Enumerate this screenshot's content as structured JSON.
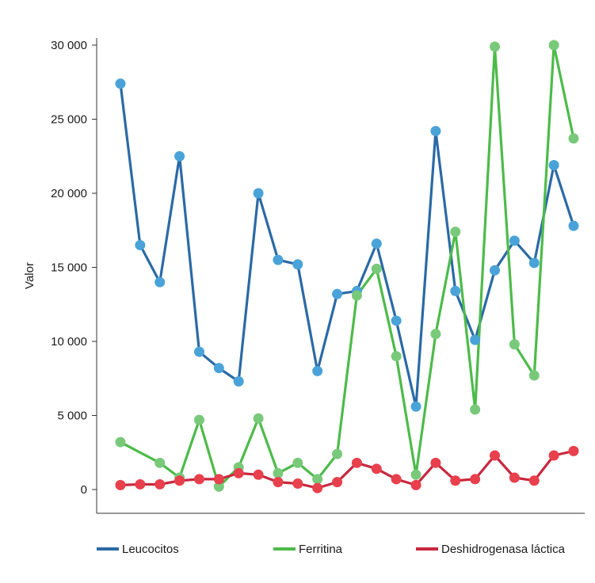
{
  "chart_data": {
    "type": "line",
    "title": "",
    "xlabel": "",
    "ylabel": "Valor",
    "ylim": [
      0,
      30000
    ],
    "yticks": [
      {
        "value": 0,
        "label": "0"
      },
      {
        "value": 5000,
        "label": "5 000"
      },
      {
        "value": 10000,
        "label": "10 000"
      },
      {
        "value": 15000,
        "label": "15 000"
      },
      {
        "value": 20000,
        "label": "20 000"
      },
      {
        "value": 25000,
        "label": "25 000"
      },
      {
        "value": 30000,
        "label": "30 000"
      }
    ],
    "grid": false,
    "legend_position": "bottom",
    "series": [
      {
        "name": "Leucocitos",
        "line_color": "#2b6aa6",
        "marker_color": "#4aa3d8",
        "points": [
          {
            "x": 1,
            "y": 27400
          },
          {
            "x": 2,
            "y": 16500
          },
          {
            "x": 3,
            "y": 14000
          },
          {
            "x": 4,
            "y": 22500
          },
          {
            "x": 5,
            "y": 9300
          },
          {
            "x": 6,
            "y": 8200
          },
          {
            "x": 7,
            "y": 7300
          },
          {
            "x": 8,
            "y": 20000
          },
          {
            "x": 9,
            "y": 15500
          },
          {
            "x": 10,
            "y": 15200
          },
          {
            "x": 11,
            "y": 8000
          },
          {
            "x": 12,
            "y": 13200
          },
          {
            "x": 13,
            "y": 13400
          },
          {
            "x": 14,
            "y": 16600
          },
          {
            "x": 15,
            "y": 11400
          },
          {
            "x": 16,
            "y": 5600
          },
          {
            "x": 17,
            "y": 24200
          },
          {
            "x": 18,
            "y": 13400
          },
          {
            "x": 19,
            "y": 10100
          },
          {
            "x": 20,
            "y": 14800
          },
          {
            "x": 21,
            "y": 16800
          },
          {
            "x": 22,
            "y": 15300
          },
          {
            "x": 23,
            "y": 21900
          },
          {
            "x": 24,
            "y": 17800
          }
        ]
      },
      {
        "name": "Ferritina",
        "line_color": "#4dbb4a",
        "marker_color": "#79c97a",
        "points": [
          {
            "x": 1,
            "y": 3200
          },
          {
            "x": 3,
            "y": 1800
          },
          {
            "x": 4,
            "y": 800
          },
          {
            "x": 5,
            "y": 4700
          },
          {
            "x": 6,
            "y": 200
          },
          {
            "x": 7,
            "y": 1500
          },
          {
            "x": 8,
            "y": 4800
          },
          {
            "x": 9,
            "y": 1100
          },
          {
            "x": 10,
            "y": 1800
          },
          {
            "x": 11,
            "y": 700
          },
          {
            "x": 12,
            "y": 2400
          },
          {
            "x": 13,
            "y": 13100
          },
          {
            "x": 14,
            "y": 14900
          },
          {
            "x": 15,
            "y": 9000
          },
          {
            "x": 16,
            "y": 1000
          },
          {
            "x": 17,
            "y": 10500
          },
          {
            "x": 18,
            "y": 17400
          },
          {
            "x": 19,
            "y": 5400
          },
          {
            "x": 20,
            "y": 29900
          },
          {
            "x": 21,
            "y": 9800
          },
          {
            "x": 22,
            "y": 7700
          },
          {
            "x": 23,
            "y": 30000
          },
          {
            "x": 24,
            "y": 23700
          }
        ]
      },
      {
        "name": "Deshidrogenasa láctica",
        "line_color": "#c8283f",
        "marker_color": "#e8404c",
        "points": [
          {
            "x": 1,
            "y": 300
          },
          {
            "x": 2,
            "y": 350
          },
          {
            "x": 3,
            "y": 350
          },
          {
            "x": 4,
            "y": 600
          },
          {
            "x": 5,
            "y": 700
          },
          {
            "x": 6,
            "y": 700
          },
          {
            "x": 7,
            "y": 1100
          },
          {
            "x": 8,
            "y": 1000
          },
          {
            "x": 9,
            "y": 500
          },
          {
            "x": 10,
            "y": 400
          },
          {
            "x": 11,
            "y": 100
          },
          {
            "x": 12,
            "y": 500
          },
          {
            "x": 13,
            "y": 1800
          },
          {
            "x": 14,
            "y": 1400
          },
          {
            "x": 15,
            "y": 700
          },
          {
            "x": 16,
            "y": 300
          },
          {
            "x": 17,
            "y": 1800
          },
          {
            "x": 18,
            "y": 600
          },
          {
            "x": 19,
            "y": 700
          },
          {
            "x": 20,
            "y": 2300
          },
          {
            "x": 21,
            "y": 800
          },
          {
            "x": 22,
            "y": 600
          },
          {
            "x": 23,
            "y": 2300
          },
          {
            "x": 24,
            "y": 2600
          }
        ]
      }
    ]
  },
  "colors": {
    "background": "#ffffff",
    "axis": "#333333"
  }
}
